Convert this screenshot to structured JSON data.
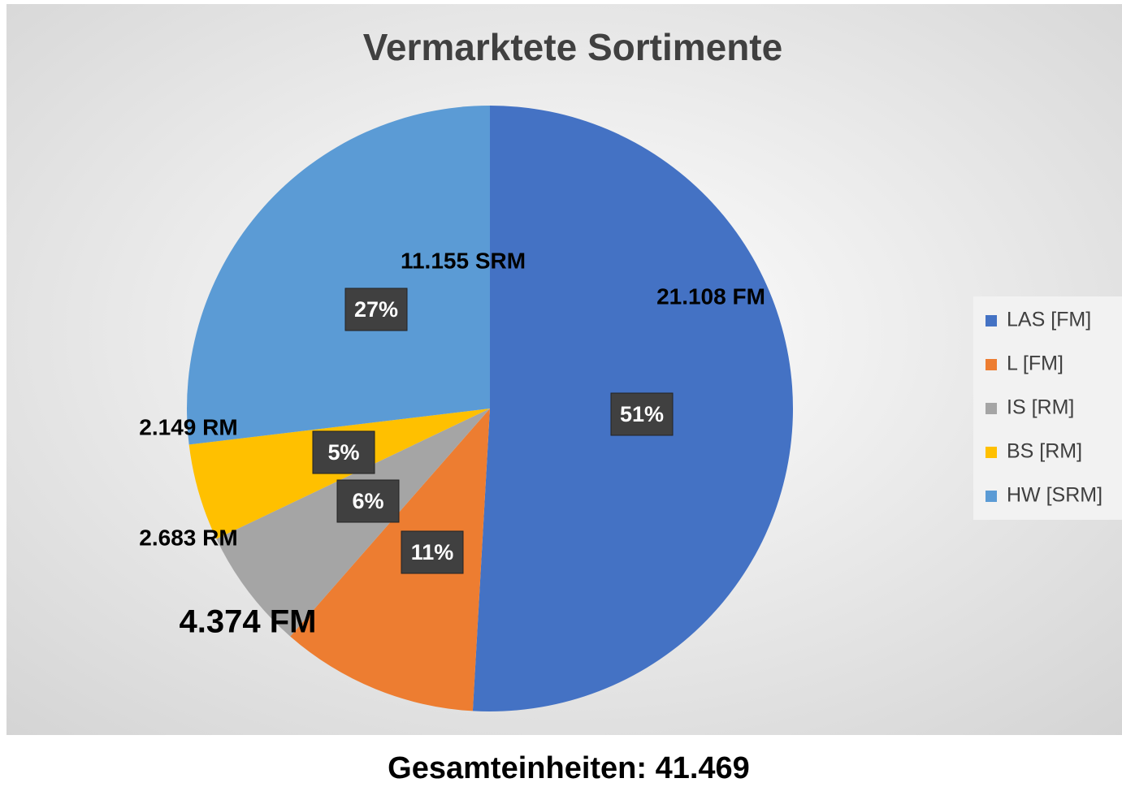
{
  "chart_data": {
    "type": "pie",
    "title": "Vermarktete Sortimente",
    "categories": [
      "LAS [FM]",
      "L [FM]",
      "IS [RM]",
      "BS [RM]",
      "HW [SRM]"
    ],
    "values": [
      21108,
      4374,
      2683,
      2149,
      11155
    ],
    "value_labels": [
      "21.108 FM",
      "4.374 FM",
      "2.683 RM",
      "2.149 RM",
      "11.155 SRM"
    ],
    "percent_labels": [
      "51%",
      "11%",
      "6%",
      "5%",
      "27%"
    ],
    "colors": [
      "#4472c4",
      "#ed7d31",
      "#a5a5a5",
      "#ffc000",
      "#5b9bd5"
    ],
    "legend": "right"
  },
  "footer": "Gesamteinheiten: 41.469"
}
